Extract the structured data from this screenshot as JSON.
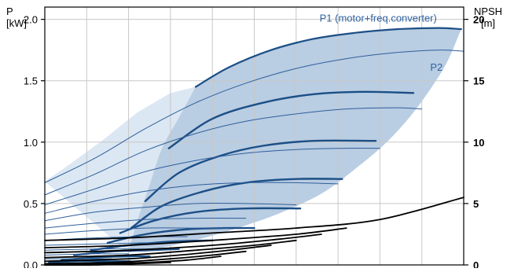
{
  "chart_data": {
    "type": "line",
    "left_axis": {
      "label_line1": "P",
      "label_line2": "[kW]",
      "ylim": [
        0,
        2.1
      ],
      "ticks": [
        0.0,
        0.5,
        1.0,
        1.5,
        2.0
      ],
      "tick_labels": [
        "0.0",
        "0.5",
        "1.0",
        "1.5",
        "2.0"
      ]
    },
    "right_axis": {
      "label_line1": "NPSH",
      "label_line2": "[m]",
      "ylim": [
        0,
        21
      ],
      "ticks": [
        0,
        5,
        10,
        15,
        20
      ],
      "tick_labels": [
        "0",
        "5",
        "10",
        "15",
        "20"
      ]
    },
    "x_axis": {
      "xlim": [
        0,
        500
      ],
      "grid_step": 50
    },
    "grid": true,
    "colors": {
      "p1": "#1c4f86",
      "p2": "#2e5f9a",
      "region": "#b9cde3",
      "low_region": "#dbe7f3",
      "npsh": "#000000",
      "label": "#2f62a0"
    },
    "annotations": [
      {
        "text": "P1 (motor+freq.converter)",
        "at_x": 328,
        "at_y": 1.98
      },
      {
        "text": "P2",
        "at_x": 460,
        "at_y": 1.58
      }
    ],
    "region_boundary": {
      "upper_x": [
        180,
        220,
        270,
        320,
        370,
        420,
        470,
        497
      ],
      "upper_y": [
        1.45,
        1.61,
        1.75,
        1.84,
        1.89,
        1.92,
        1.93,
        1.92
      ],
      "right_x": [
        497,
        480,
        460,
        435,
        405,
        370,
        330,
        280,
        230,
        190,
        160,
        140,
        120,
        100
      ],
      "right_y": [
        1.92,
        1.65,
        1.43,
        1.2,
        0.98,
        0.78,
        0.58,
        0.42,
        0.3,
        0.22,
        0.17,
        0.14,
        0.12,
        0.1
      ],
      "left_x": [
        100,
        110,
        125,
        140,
        160,
        180
      ],
      "left_y": [
        0.1,
        0.35,
        0.65,
        0.95,
        1.2,
        1.45
      ],
      "light_x": [
        0,
        30,
        70,
        110,
        150,
        180,
        160,
        140,
        125,
        110,
        100
      ],
      "light_y": [
        0.68,
        0.82,
        1.02,
        1.24,
        1.4,
        1.45,
        1.2,
        0.95,
        0.65,
        0.35,
        0.1
      ]
    },
    "series": [
      {
        "role": "P1",
        "x": [
          180,
          220,
          270,
          320,
          370,
          420,
          470,
          497
        ],
        "y": [
          1.45,
          1.61,
          1.75,
          1.84,
          1.89,
          1.92,
          1.93,
          1.92
        ]
      },
      {
        "role": "P1",
        "x": [
          148,
          200,
          260,
          320,
          380,
          440
        ],
        "y": [
          0.95,
          1.19,
          1.32,
          1.39,
          1.41,
          1.4
        ]
      },
      {
        "role": "P1",
        "x": [
          120,
          160,
          210,
          260,
          320,
          395
        ],
        "y": [
          0.52,
          0.75,
          0.89,
          0.97,
          1.01,
          1.01
        ]
      },
      {
        "role": "P1",
        "x": [
          103,
          140,
          190,
          240,
          300,
          355
        ],
        "y": [
          0.3,
          0.48,
          0.6,
          0.67,
          0.7,
          0.7
        ]
      },
      {
        "role": "P1",
        "x": [
          90,
          130,
          180,
          240,
          305
        ],
        "y": [
          0.26,
          0.36,
          0.43,
          0.46,
          0.46
        ]
      },
      {
        "role": "P1",
        "x": [
          75,
          120,
          170,
          215,
          250
        ],
        "y": [
          0.18,
          0.25,
          0.29,
          0.3,
          0.3
        ]
      },
      {
        "role": "P1",
        "x": [
          55,
          100,
          150,
          200
        ],
        "y": [
          0.12,
          0.16,
          0.19,
          0.2
        ]
      },
      {
        "role": "P1",
        "x": [
          35,
          80,
          125,
          160
        ],
        "y": [
          0.08,
          0.11,
          0.12,
          0.13
        ]
      },
      {
        "role": "P1",
        "x": [
          20,
          60,
          100,
          125
        ],
        "y": [
          0.04,
          0.06,
          0.07,
          0.07
        ]
      },
      {
        "role": "P1",
        "x": [
          5,
          40,
          80,
          102
        ],
        "y": [
          0.02,
          0.03,
          0.03,
          0.03
        ]
      },
      {
        "role": "P2",
        "x": [
          0,
          60,
          120,
          180,
          240,
          300,
          360,
          420,
          470,
          500
        ],
        "y": [
          0.67,
          0.87,
          1.11,
          1.32,
          1.48,
          1.6,
          1.68,
          1.73,
          1.75,
          1.74
        ]
      },
      {
        "role": "P2",
        "x": [
          0,
          60,
          120,
          180,
          240,
          300,
          360,
          420,
          450
        ],
        "y": [
          0.57,
          0.74,
          0.93,
          1.07,
          1.17,
          1.23,
          1.27,
          1.28,
          1.27
        ]
      },
      {
        "role": "P2",
        "x": [
          0,
          60,
          120,
          180,
          240,
          300,
          360,
          400
        ],
        "y": [
          0.49,
          0.62,
          0.76,
          0.85,
          0.91,
          0.94,
          0.95,
          0.95
        ]
      },
      {
        "role": "P2",
        "x": [
          0,
          60,
          120,
          180,
          240,
          300,
          350
        ],
        "y": [
          0.42,
          0.52,
          0.6,
          0.65,
          0.67,
          0.67,
          0.66
        ]
      },
      {
        "role": "P2",
        "x": [
          0,
          60,
          120,
          180,
          240,
          300
        ],
        "y": [
          0.36,
          0.43,
          0.47,
          0.5,
          0.5,
          0.49
        ]
      },
      {
        "role": "P2",
        "x": [
          0,
          60,
          120,
          180,
          240
        ],
        "y": [
          0.3,
          0.34,
          0.37,
          0.38,
          0.38
        ]
      },
      {
        "role": "P2",
        "x": [
          0,
          60,
          120,
          180,
          220
        ],
        "y": [
          0.25,
          0.28,
          0.3,
          0.3,
          0.3
        ]
      },
      {
        "role": "P2",
        "x": [
          0,
          60,
          120,
          170
        ],
        "y": [
          0.2,
          0.22,
          0.23,
          0.23
        ]
      },
      {
        "role": "P2",
        "x": [
          0,
          60,
          120,
          150
        ],
        "y": [
          0.16,
          0.17,
          0.18,
          0.18
        ]
      },
      {
        "role": "P2",
        "x": [
          0,
          60,
          100,
          130
        ],
        "y": [
          0.12,
          0.13,
          0.13,
          0.13
        ]
      },
      {
        "role": "P2",
        "x": [
          0,
          60,
          100
        ],
        "y": [
          0.08,
          0.09,
          0.09
        ]
      },
      {
        "role": "P2",
        "x": [
          0,
          50,
          80
        ],
        "y": [
          0.05,
          0.05,
          0.05
        ]
      },
      {
        "role": "NPSH",
        "x": [
          0,
          100,
          200,
          300,
          400,
          500
        ],
        "y": [
          2.0,
          2.2,
          2.6,
          3.0,
          3.7,
          5.5
        ]
      },
      {
        "role": "NPSH",
        "x": [
          0,
          100,
          200,
          300,
          360
        ],
        "y": [
          1.4,
          1.6,
          2.0,
          2.5,
          3.0
        ]
      },
      {
        "role": "NPSH",
        "x": [
          0,
          100,
          200,
          280,
          330
        ],
        "y": [
          1.0,
          1.2,
          1.6,
          2.1,
          2.5
        ]
      },
      {
        "role": "NPSH",
        "x": [
          0,
          100,
          180,
          250,
          300
        ],
        "y": [
          0.6,
          0.8,
          1.2,
          1.6,
          2.0
        ]
      },
      {
        "role": "NPSH",
        "x": [
          0,
          100,
          160,
          220,
          270
        ],
        "y": [
          0.3,
          0.5,
          0.8,
          1.2,
          1.6
        ]
      },
      {
        "role": "NPSH",
        "x": [
          0,
          80,
          150,
          200,
          240
        ],
        "y": [
          0.1,
          0.2,
          0.5,
          0.8,
          1.1
        ]
      },
      {
        "role": "NPSH",
        "x": [
          0,
          60,
          120,
          170,
          210
        ],
        "y": [
          0.0,
          0.1,
          0.2,
          0.4,
          0.7
        ]
      },
      {
        "role": "NPSH",
        "x": [
          0,
          60,
          110,
          150
        ],
        "y": [
          0.0,
          0.0,
          0.1,
          0.2
        ]
      }
    ]
  }
}
